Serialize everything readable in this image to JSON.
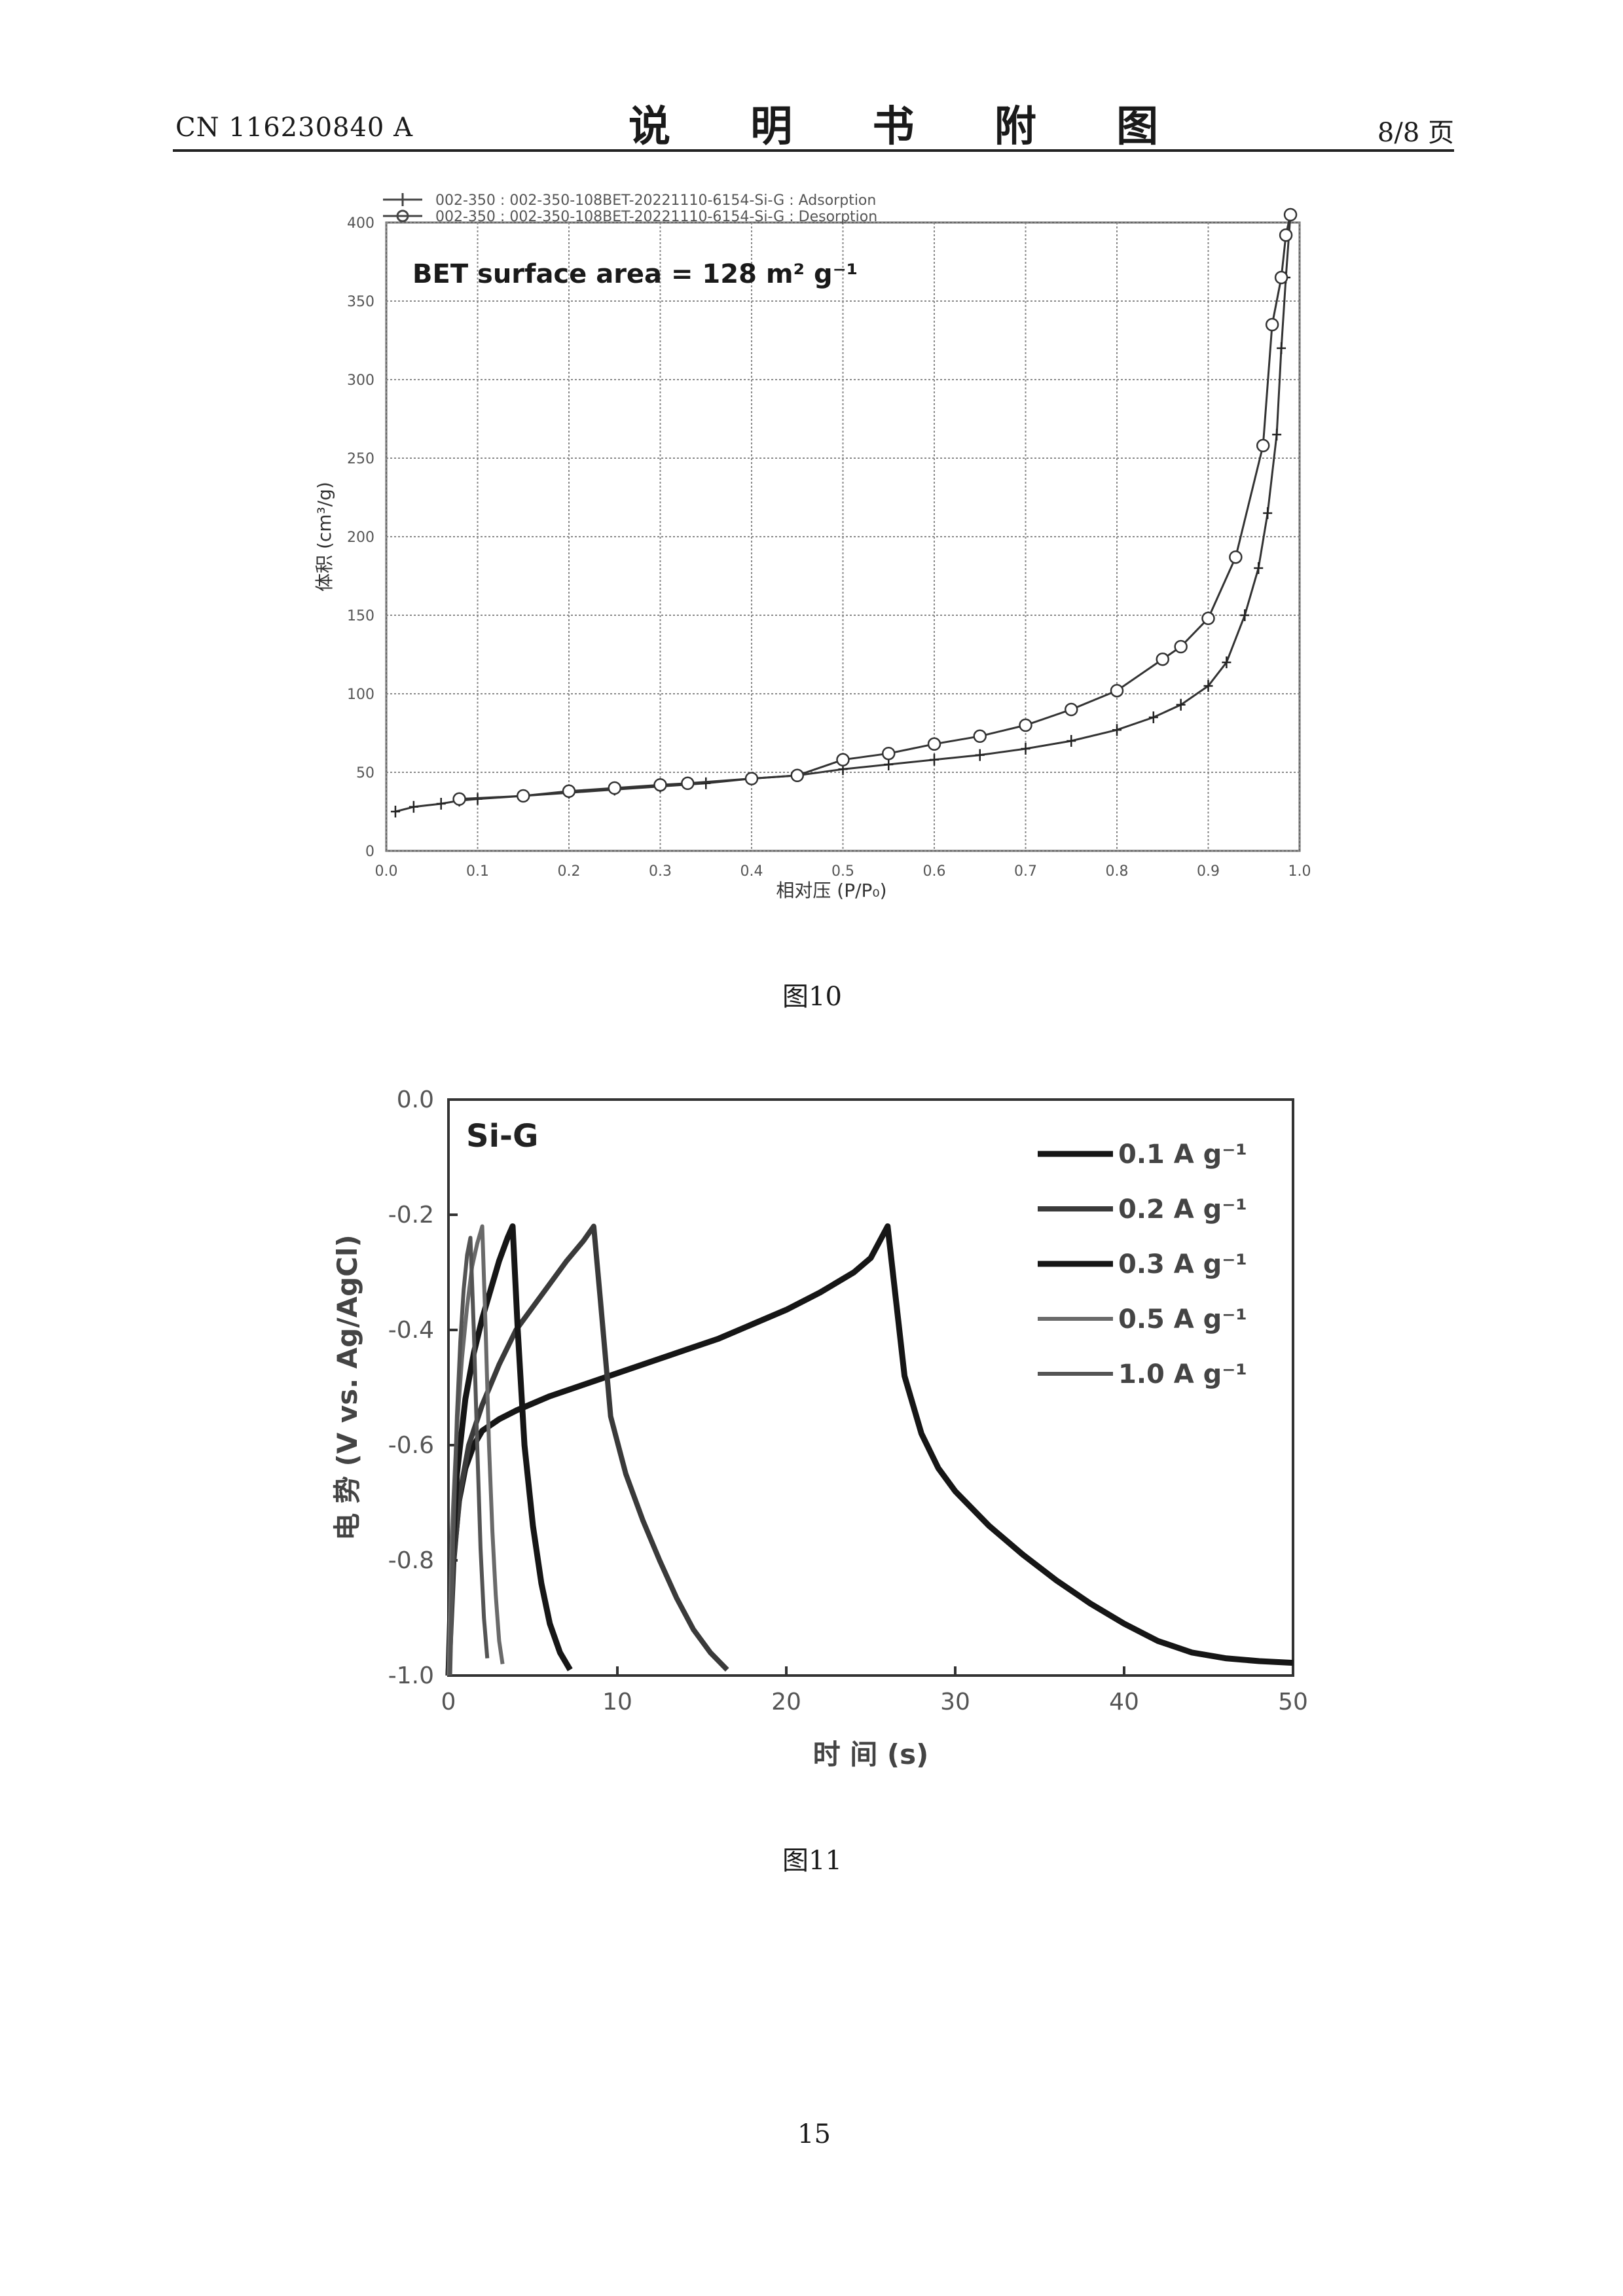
{
  "header": {
    "doc_number": "CN 116230840 A",
    "section_title": "说 明 书 附 图",
    "page_of": "8/8 页"
  },
  "figures": [
    {
      "caption": "图10"
    },
    {
      "caption": "图11"
    }
  ],
  "page_number": "15",
  "chart_data": [
    {
      "type": "line",
      "annotation": "BET surface area = 128 m² g⁻¹",
      "legend": [
        "002-350 : 002-350-108BET-20221110-6154-Si-G : Adsorption",
        "002-350 : 002-350-108BET-20221110-6154-Si-G : Desorption"
      ],
      "xlabel": "相对压 (P/P₀)",
      "ylabel": "体积 (cm³/g)",
      "xlim": [
        0.0,
        1.0
      ],
      "ylim": [
        0,
        400
      ],
      "x_ticks": [
        "0.0",
        "0.1",
        "0.2",
        "0.3",
        "0.4",
        "0.5",
        "0.6",
        "0.7",
        "0.8",
        "0.9",
        "1.0"
      ],
      "y_ticks": [
        "0",
        "50",
        "100",
        "150",
        "200",
        "250",
        "300",
        "350",
        "400"
      ],
      "grid": true,
      "legend_position": "top",
      "series": [
        {
          "name": "Adsorption",
          "marker": "plus",
          "points": [
            [
              0.01,
              25
            ],
            [
              0.03,
              28
            ],
            [
              0.06,
              30
            ],
            [
              0.08,
              32
            ],
            [
              0.1,
              33
            ],
            [
              0.15,
              35
            ],
            [
              0.2,
              37
            ],
            [
              0.25,
              39
            ],
            [
              0.3,
              41
            ],
            [
              0.35,
              43
            ],
            [
              0.4,
              46
            ],
            [
              0.45,
              48
            ],
            [
              0.5,
              52
            ],
            [
              0.55,
              55
            ],
            [
              0.6,
              58
            ],
            [
              0.65,
              61
            ],
            [
              0.7,
              65
            ],
            [
              0.75,
              70
            ],
            [
              0.8,
              77
            ],
            [
              0.84,
              85
            ],
            [
              0.87,
              93
            ],
            [
              0.9,
              105
            ],
            [
              0.92,
              120
            ],
            [
              0.94,
              150
            ],
            [
              0.955,
              180
            ],
            [
              0.965,
              215
            ],
            [
              0.975,
              265
            ],
            [
              0.98,
              320
            ],
            [
              0.985,
              365
            ],
            [
              0.99,
              405
            ]
          ]
        },
        {
          "name": "Desorption",
          "marker": "circle",
          "points": [
            [
              0.99,
              405
            ],
            [
              0.985,
              392
            ],
            [
              0.98,
              365
            ],
            [
              0.97,
              335
            ],
            [
              0.96,
              258
            ],
            [
              0.93,
              187
            ],
            [
              0.9,
              148
            ],
            [
              0.87,
              130
            ],
            [
              0.85,
              122
            ],
            [
              0.8,
              102
            ],
            [
              0.75,
              90
            ],
            [
              0.7,
              80
            ],
            [
              0.65,
              73
            ],
            [
              0.6,
              68
            ],
            [
              0.55,
              62
            ],
            [
              0.5,
              58
            ],
            [
              0.45,
              48
            ],
            [
              0.4,
              46
            ],
            [
              0.33,
              43
            ],
            [
              0.3,
              42
            ],
            [
              0.25,
              40
            ],
            [
              0.2,
              38
            ],
            [
              0.15,
              35
            ],
            [
              0.08,
              33
            ]
          ]
        }
      ]
    },
    {
      "type": "line",
      "annotation": "Si-G",
      "xlabel": "时 间 (s)",
      "ylabel": "电 势 (V vs. Ag/AgCl)",
      "xlim": [
        0,
        50
      ],
      "ylim": [
        -1.0,
        0.0
      ],
      "x_ticks": [
        "0",
        "10",
        "20",
        "30",
        "40",
        "50"
      ],
      "y_ticks": [
        "0.0",
        "-0.2",
        "-0.4",
        "-0.6",
        "-0.8",
        "-1.0"
      ],
      "grid": false,
      "legend_position": "top-right",
      "series": [
        {
          "name": "0.1 A g⁻¹",
          "color": "#161616",
          "points": [
            [
              0,
              -1.0
            ],
            [
              0.3,
              -0.8
            ],
            [
              0.6,
              -0.7
            ],
            [
              1.0,
              -0.64
            ],
            [
              1.5,
              -0.6
            ],
            [
              2,
              -0.575
            ],
            [
              3,
              -0.555
            ],
            [
              4,
              -0.54
            ],
            [
              6,
              -0.515
            ],
            [
              8,
              -0.495
            ],
            [
              10,
              -0.475
            ],
            [
              12,
              -0.455
            ],
            [
              14,
              -0.435
            ],
            [
              16,
              -0.415
            ],
            [
              18,
              -0.39
            ],
            [
              20,
              -0.365
            ],
            [
              22,
              -0.335
            ],
            [
              24,
              -0.3
            ],
            [
              25,
              -0.275
            ],
            [
              26,
              -0.22
            ],
            [
              26.5,
              -0.35
            ],
            [
              27,
              -0.48
            ],
            [
              28,
              -0.58
            ],
            [
              29,
              -0.64
            ],
            [
              30,
              -0.68
            ],
            [
              32,
              -0.74
            ],
            [
              34,
              -0.79
            ],
            [
              36,
              -0.835
            ],
            [
              38,
              -0.875
            ],
            [
              40,
              -0.91
            ],
            [
              42,
              -0.94
            ],
            [
              44,
              -0.96
            ],
            [
              46,
              -0.97
            ],
            [
              48,
              -0.975
            ],
            [
              50,
              -0.978
            ]
          ]
        },
        {
          "name": "0.2 A g⁻¹",
          "color": "#3a3a3a",
          "points": [
            [
              0,
              -1.0
            ],
            [
              0.3,
              -0.8
            ],
            [
              0.7,
              -0.68
            ],
            [
              1.2,
              -0.6
            ],
            [
              2,
              -0.53
            ],
            [
              3,
              -0.46
            ],
            [
              4,
              -0.4
            ],
            [
              5,
              -0.36
            ],
            [
              6,
              -0.32
            ],
            [
              7,
              -0.28
            ],
            [
              8,
              -0.245
            ],
            [
              8.6,
              -0.22
            ],
            [
              9,
              -0.35
            ],
            [
              9.6,
              -0.55
            ],
            [
              10.5,
              -0.65
            ],
            [
              11.5,
              -0.73
            ],
            [
              12.5,
              -0.8
            ],
            [
              13.5,
              -0.865
            ],
            [
              14.5,
              -0.92
            ],
            [
              15.5,
              -0.96
            ],
            [
              16.5,
              -0.99
            ]
          ]
        },
        {
          "name": "0.3 A g⁻¹",
          "color": "#161616",
          "points": [
            [
              0,
              -1.0
            ],
            [
              0.2,
              -0.8
            ],
            [
              0.5,
              -0.65
            ],
            [
              1,
              -0.52
            ],
            [
              1.5,
              -0.44
            ],
            [
              2,
              -0.38
            ],
            [
              2.5,
              -0.33
            ],
            [
              3,
              -0.28
            ],
            [
              3.5,
              -0.24
            ],
            [
              3.8,
              -0.22
            ],
            [
              4.1,
              -0.4
            ],
            [
              4.5,
              -0.6
            ],
            [
              5,
              -0.74
            ],
            [
              5.5,
              -0.84
            ],
            [
              6,
              -0.91
            ],
            [
              6.6,
              -0.96
            ],
            [
              7.2,
              -0.99
            ]
          ]
        },
        {
          "name": "0.5 A g⁻¹",
          "color": "#6a6a6a",
          "points": [
            [
              0,
              -1.0
            ],
            [
              0.2,
              -0.75
            ],
            [
              0.5,
              -0.57
            ],
            [
              0.8,
              -0.45
            ],
            [
              1.1,
              -0.36
            ],
            [
              1.4,
              -0.29
            ],
            [
              1.7,
              -0.25
            ],
            [
              2.0,
              -0.22
            ],
            [
              2.2,
              -0.4
            ],
            [
              2.4,
              -0.6
            ],
            [
              2.6,
              -0.75
            ],
            [
              2.8,
              -0.86
            ],
            [
              3.0,
              -0.94
            ],
            [
              3.2,
              -0.98
            ]
          ]
        },
        {
          "name": "1.0 A g⁻¹",
          "color": "#545454",
          "points": [
            [
              0.1,
              -1.0
            ],
            [
              0.3,
              -0.75
            ],
            [
              0.5,
              -0.55
            ],
            [
              0.7,
              -0.42
            ],
            [
              0.9,
              -0.33
            ],
            [
              1.1,
              -0.27
            ],
            [
              1.3,
              -0.24
            ],
            [
              1.5,
              -0.4
            ],
            [
              1.7,
              -0.6
            ],
            [
              1.9,
              -0.78
            ],
            [
              2.1,
              -0.9
            ],
            [
              2.3,
              -0.97
            ]
          ]
        }
      ]
    }
  ]
}
